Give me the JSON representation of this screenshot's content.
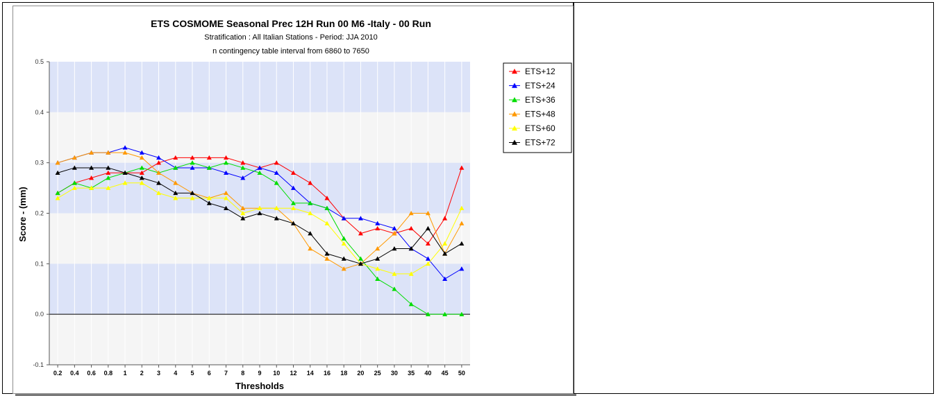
{
  "chart_data": {
    "type": "line",
    "title": "ETS  COSMOME Seasonal Prec 12H Run 00 M6 -Italy - 00 Run",
    "subtitle": "Stratification : All Italian Stations - Period: JJA 2010",
    "subtitle2": "n contingency table interval from 6860 to 7650",
    "xlabel": "Thresholds",
    "ylabel": "Score - (mm)",
    "ylim": [
      -0.1,
      0.5
    ],
    "yticks": [
      "-0.1",
      "0.0",
      "0.1",
      "0.2",
      "0.3",
      "0.4",
      "0.5"
    ],
    "legend_position": "top-right",
    "grid": true,
    "categories": [
      "0.2",
      "0.4",
      "0.6",
      "0.8",
      "1",
      "2",
      "3",
      "4",
      "5",
      "6",
      "7",
      "8",
      "9",
      "10",
      "12",
      "14",
      "16",
      "18",
      "20",
      "25",
      "30",
      "35",
      "40",
      "45",
      "50"
    ],
    "series": [
      {
        "name": "ETS+12",
        "color": "#ff0000",
        "values": [
          0.24,
          0.26,
          0.27,
          0.28,
          0.28,
          0.28,
          0.3,
          0.31,
          0.31,
          0.31,
          0.31,
          0.3,
          0.29,
          0.3,
          0.28,
          0.26,
          0.23,
          0.19,
          0.16,
          0.17,
          0.16,
          0.17,
          0.14,
          0.19,
          0.29
        ]
      },
      {
        "name": "ETS+24",
        "color": "#0000ff",
        "values": [
          0.3,
          0.31,
          0.32,
          0.32,
          0.33,
          0.32,
          0.31,
          0.29,
          0.29,
          0.29,
          0.28,
          0.27,
          0.29,
          0.28,
          0.25,
          0.22,
          0.21,
          0.19,
          0.19,
          0.18,
          0.17,
          0.13,
          0.11,
          0.07,
          0.09
        ]
      },
      {
        "name": "ETS+36",
        "color": "#00dd00",
        "values": [
          0.24,
          0.26,
          0.25,
          0.27,
          0.28,
          0.29,
          0.28,
          0.29,
          0.3,
          0.29,
          0.3,
          0.29,
          0.28,
          0.26,
          0.22,
          0.22,
          0.21,
          0.15,
          0.11,
          0.07,
          0.05,
          0.02,
          0.0,
          0.0,
          0.0
        ]
      },
      {
        "name": "ETS+48",
        "color": "#ff9900",
        "values": [
          0.3,
          0.31,
          0.32,
          0.32,
          0.32,
          0.31,
          0.28,
          0.26,
          0.24,
          0.23,
          0.24,
          0.21,
          0.21,
          0.21,
          0.18,
          0.13,
          0.11,
          0.09,
          0.1,
          0.13,
          0.16,
          0.2,
          0.2,
          0.12,
          0.18
        ]
      },
      {
        "name": "ETS+60",
        "color": "#ffff00",
        "values": [
          0.23,
          0.25,
          0.25,
          0.25,
          0.26,
          0.26,
          0.24,
          0.23,
          0.23,
          0.23,
          0.23,
          0.2,
          0.21,
          0.21,
          0.21,
          0.2,
          0.18,
          0.14,
          0.1,
          0.09,
          0.08,
          0.08,
          0.1,
          0.14,
          0.21
        ]
      },
      {
        "name": "ETS+72",
        "color": "#000000",
        "values": [
          0.28,
          0.29,
          0.29,
          0.29,
          0.28,
          0.27,
          0.26,
          0.24,
          0.24,
          0.22,
          0.21,
          0.19,
          0.2,
          0.19,
          0.18,
          0.16,
          0.12,
          0.11,
          0.1,
          0.11,
          0.13,
          0.13,
          0.17,
          0.12,
          0.14
        ]
      }
    ],
    "band_colors": {
      "light": "#dce3f8",
      "lighter": "#f5f5f5"
    }
  }
}
